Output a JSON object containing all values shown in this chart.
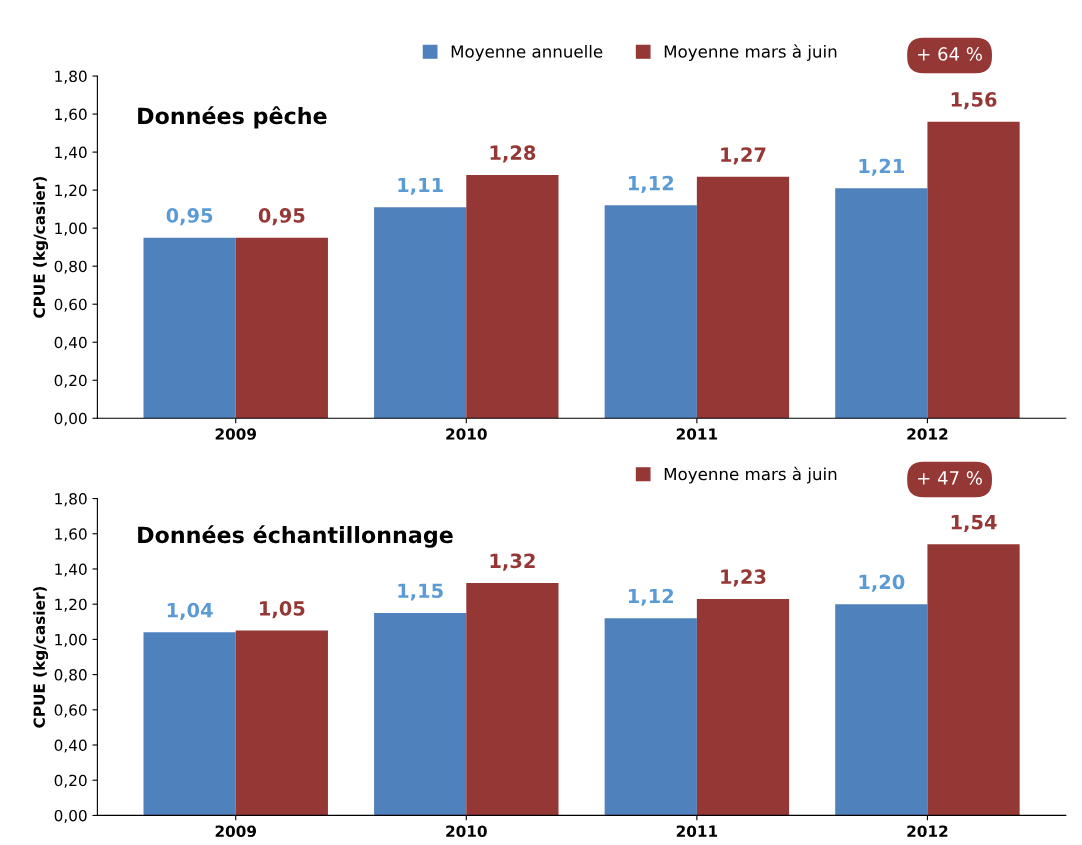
{
  "chart_data": [
    {
      "type": "bar",
      "title": "Données pêche",
      "ylabel": "CPUE (kg/casier)",
      "categories": [
        "2009",
        "2010",
        "2011",
        "2012"
      ],
      "series": [
        {
          "name": "Moyenne annuelle",
          "color": "#4f81bd",
          "values": [
            0.95,
            1.11,
            1.12,
            1.21
          ],
          "value_labels": [
            "0,95",
            "1,11",
            "1,12",
            "1,21"
          ]
        },
        {
          "name": "Moyenne mars à juin",
          "color": "#953735",
          "values": [
            0.95,
            1.28,
            1.27,
            1.56
          ],
          "value_labels": [
            "0,95",
            "1,28",
            "1,27",
            "1,56"
          ]
        }
      ],
      "ylim": [
        0,
        1.8
      ],
      "yticks": [
        {
          "value": 0,
          "label": "0,00"
        },
        {
          "value": 0.2,
          "label": "0,20"
        },
        {
          "value": 0.4,
          "label": "0,40"
        },
        {
          "value": 0.6,
          "label": "0,60"
        },
        {
          "value": 0.8,
          "label": "0,80"
        },
        {
          "value": 1.0,
          "label": "1,00"
        },
        {
          "value": 1.2,
          "label": "1,20"
        },
        {
          "value": 1.4,
          "label": "1,40"
        },
        {
          "value": 1.6,
          "label": "1,60"
        },
        {
          "value": 1.8,
          "label": "1,80"
        }
      ],
      "legend": "top right",
      "grid": false,
      "annotations": [
        "+ 64 %"
      ]
    },
    {
      "type": "bar",
      "title": "Données échantillonnage",
      "ylabel": "CPUE (kg/casier)",
      "categories": [
        "2009",
        "2010",
        "2011",
        "2012"
      ],
      "series": [
        {
          "color": "#4f81bd",
          "values": [
            1.04,
            1.15,
            1.12,
            1.2
          ],
          "value_labels": [
            "1,04",
            "1,15",
            "1,12",
            "1,20"
          ]
        },
        {
          "name": "Moyenne mars à juin",
          "color": "#953735",
          "values": [
            1.05,
            1.32,
            1.23,
            1.54
          ],
          "value_labels": [
            "1,05",
            "1,32",
            "1,23",
            "1,54"
          ]
        }
      ],
      "ylim": [
        0,
        1.8
      ],
      "yticks": [
        {
          "value": 0,
          "label": "0,00"
        },
        {
          "value": 0.2,
          "label": "0,20"
        },
        {
          "value": 0.4,
          "label": "0,40"
        },
        {
          "value": 0.6,
          "label": "0,60"
        },
        {
          "value": 0.8,
          "label": "0,80"
        },
        {
          "value": 1.0,
          "label": "1,00"
        },
        {
          "value": 1.2,
          "label": "1,20"
        },
        {
          "value": 1.4,
          "label": "1,40"
        },
        {
          "value": 1.6,
          "label": "1,60"
        },
        {
          "value": 1.8,
          "label": "1,80"
        }
      ],
      "legend": "top right",
      "grid": false,
      "annotations": [
        "+ 47 %"
      ]
    }
  ]
}
